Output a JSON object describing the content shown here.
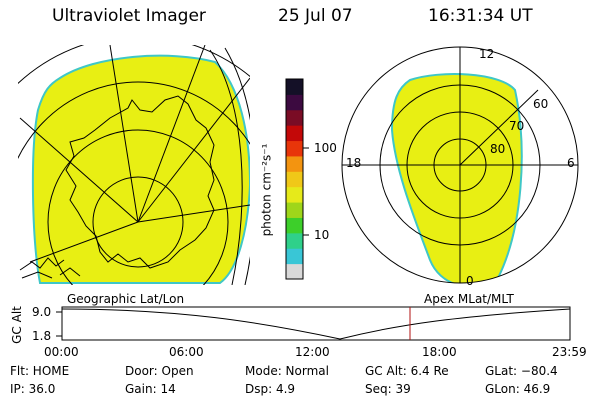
{
  "header": {
    "instrument": "Ultraviolet Imager",
    "date": "25 Jul 07",
    "time": "16:31:34 UT"
  },
  "colorbar": {
    "unit_label": "photon cm⁻²s⁻¹",
    "tick_labels": [
      "100",
      "10"
    ],
    "colors": [
      "#d9d9d9",
      "#39c6d6",
      "#2fd08a",
      "#3dcf2a",
      "#9fd61a",
      "#e6ea1a",
      "#f0c818",
      "#f39410",
      "#e8350a",
      "#c30808",
      "#7a0c25",
      "#3c0a40",
      "#141027"
    ]
  },
  "left_panel": {
    "label": "Geographic Lat/Lon",
    "fill_color": "#e8ef13"
  },
  "right_panel": {
    "label": "Apex MLat/MLT",
    "fill_color": "#e8ef13",
    "mlt_labels": [
      "12",
      "18",
      "6",
      "0"
    ],
    "mlat_labels": [
      "60",
      "70",
      "80"
    ]
  },
  "timeline": {
    "axis_title": "GC Alt",
    "y_labels": [
      "9.0",
      "1.8"
    ],
    "x_labels": [
      "00:00",
      "06:00",
      "12:00",
      "18:00",
      "23:59"
    ],
    "marker_color": "#b01010"
  },
  "info": {
    "row1": {
      "flt": "Flt: HOME",
      "door": "Door: Open",
      "mode": "Mode: Normal",
      "gc_alt": "GC Alt: 6.4 Re",
      "glat": "GLat: −80.4"
    },
    "row2": {
      "ip": "IP: 36.0",
      "gain": "Gain: 14",
      "dsp": "Dsp:    4.9",
      "seq": "Seq: 39",
      "glon": "GLon:  46.9"
    }
  }
}
